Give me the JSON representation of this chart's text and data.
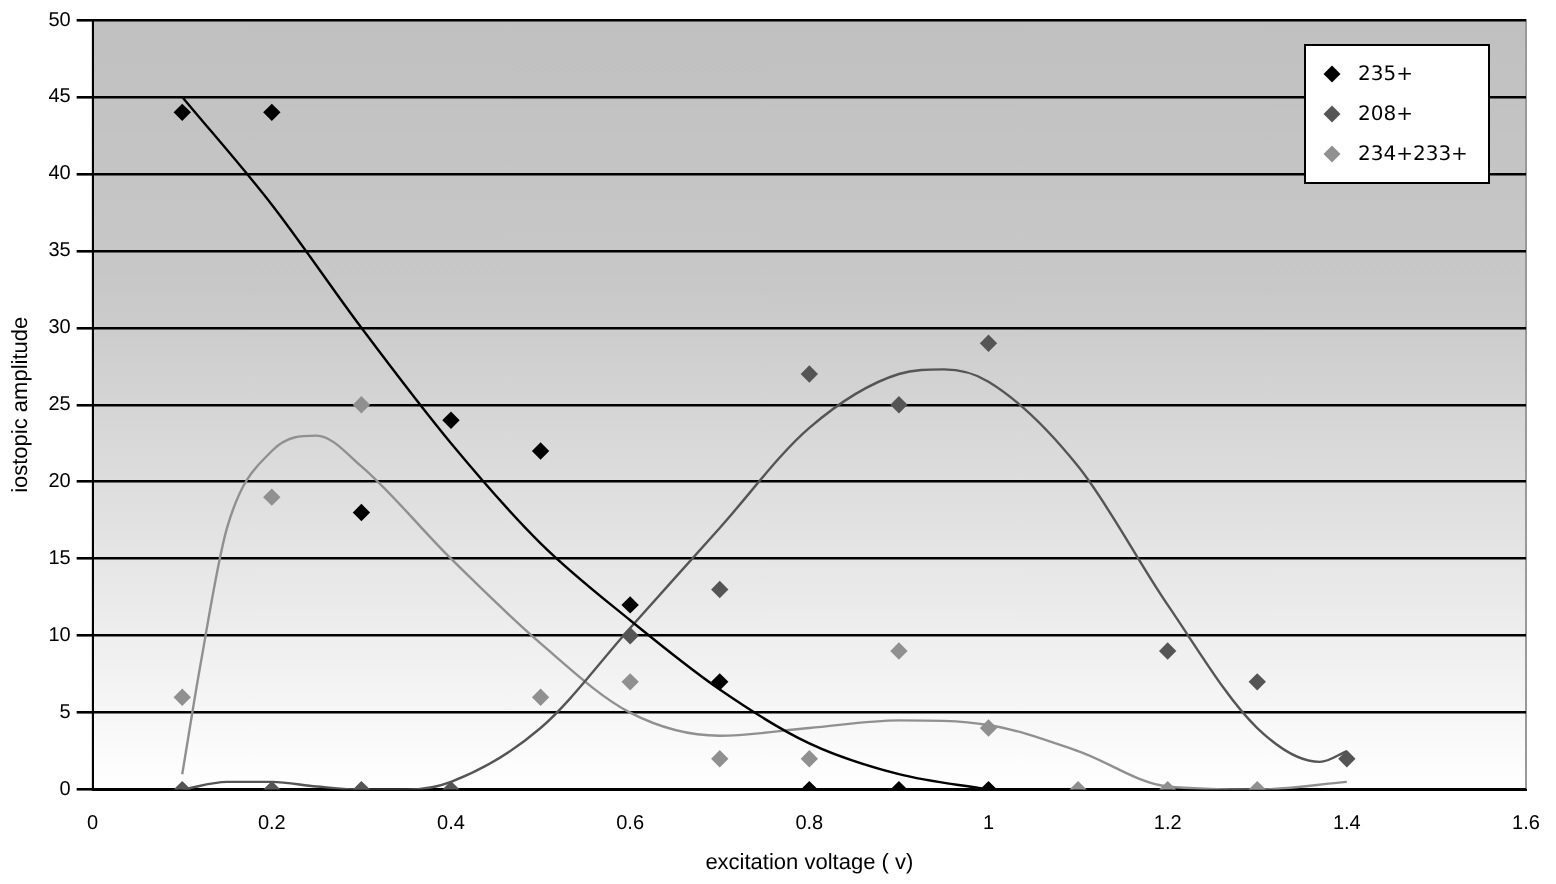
{
  "chart_data": {
    "type": "scatter",
    "xlabel": "excitation voltage ( v)",
    "ylabel": "iostopic amplitude",
    "xlim": [
      0,
      1.6
    ],
    "xticks": [
      0,
      0.2,
      0.4,
      0.6,
      0.8,
      1,
      1.2,
      1.4,
      1.6
    ],
    "ylim": [
      0,
      50
    ],
    "yticks": [
      0,
      5,
      10,
      15,
      20,
      25,
      30,
      35,
      40,
      45,
      50
    ],
    "grid": "y",
    "legend": "top right",
    "marker": "diamond",
    "series": [
      {
        "name": "235+",
        "color": "#000000",
        "x": [
          0.1,
          0.2,
          0.3,
          0.4,
          0.5,
          0.6,
          0.7,
          0.8,
          0.9,
          1.0
        ],
        "values": [
          44,
          44,
          18,
          24,
          22,
          12,
          7,
          0,
          0,
          0
        ]
      },
      {
        "name": "208+",
        "color": "#555555",
        "x": [
          0.1,
          0.2,
          0.3,
          0.4,
          0.6,
          0.7,
          0.8,
          0.9,
          1.0,
          1.2,
          1.3,
          1.4
        ],
        "values": [
          0,
          0,
          0,
          0,
          10,
          13,
          27,
          25,
          29,
          9,
          7,
          2
        ]
      },
      {
        "name": "234+233+",
        "color": "#909090",
        "x": [
          0.1,
          0.2,
          0.3,
          0.5,
          0.6,
          0.7,
          0.8,
          0.9,
          1.0,
          1.1,
          1.2,
          1.3
        ],
        "values": [
          6,
          19,
          25,
          6,
          7,
          2,
          2,
          9,
          4,
          0,
          0,
          0
        ]
      },
      {
        "type": "line",
        "marker": "none",
        "color": "#000000",
        "x": [
          0.1,
          0.2,
          0.3,
          0.4,
          0.5,
          0.6,
          0.7,
          0.8,
          0.9,
          1.0
        ],
        "values": [
          45,
          38,
          30,
          22.5,
          16,
          11,
          6.5,
          3,
          1,
          0
        ]
      },
      {
        "type": "line",
        "marker": "none",
        "color": "#555555",
        "x": [
          0.1,
          0.15,
          0.2,
          0.25,
          0.3,
          0.35,
          0.4,
          0.5,
          0.6,
          0.7,
          0.8,
          0.9,
          0.95,
          1.0,
          1.1,
          1.2,
          1.3,
          1.37,
          1.4
        ],
        "values": [
          0,
          0.5,
          0.5,
          0.2,
          0,
          0,
          0.5,
          4,
          10.5,
          17,
          23.5,
          27,
          27.3,
          26.5,
          21,
          12,
          4,
          1.8,
          2.5
        ]
      },
      {
        "type": "line",
        "marker": "none",
        "color": "#909090",
        "x": [
          0.1,
          0.12,
          0.15,
          0.2,
          0.25,
          0.3,
          0.4,
          0.5,
          0.6,
          0.7,
          0.8,
          0.9,
          1.0,
          1.1,
          1.2,
          1.3,
          1.4
        ],
        "values": [
          1,
          8,
          17,
          22,
          23,
          21,
          15,
          9.5,
          5,
          3.5,
          4,
          4.5,
          4.2,
          2.5,
          0.2,
          0,
          0.5
        ]
      }
    ]
  }
}
